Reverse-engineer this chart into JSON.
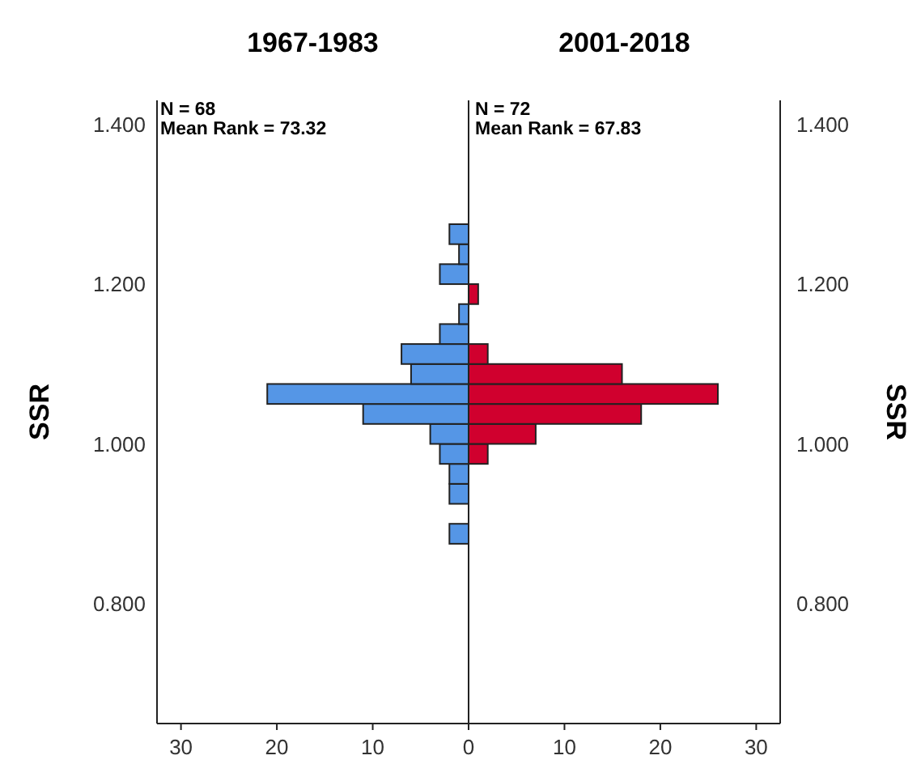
{
  "chart_data": [
    {
      "type": "histogram",
      "orientation": "horizontal",
      "title": "1967-1983",
      "ylabel": "SSR",
      "annotations": [
        "N = 68",
        "Mean Rank = 73.32"
      ],
      "bins": [
        0.875,
        0.9,
        0.925,
        0.95,
        0.975,
        1.0,
        1.025,
        1.05,
        1.075,
        1.1,
        1.125,
        1.15,
        1.175,
        1.2,
        1.225,
        1.25,
        1.275
      ],
      "series": [
        {
          "color": "#5596e6",
          "values": [
            2,
            0,
            2,
            2,
            3,
            4,
            11,
            21,
            6,
            7,
            3,
            1,
            0,
            3,
            1,
            2
          ]
        }
      ],
      "xlim": [
        32.5,
        0
      ],
      "xticks": [
        30,
        20,
        10,
        {
          "value": 0,
          "label": null
        }
      ],
      "ylim": [
        0.65,
        1.43
      ],
      "yticks": [
        {
          "value": 0.8,
          "label": "0.800"
        },
        {
          "value": 1.0,
          "label": "1.000"
        },
        {
          "value": 1.2,
          "label": "1.200"
        },
        {
          "value": 1.4,
          "label": "1.400"
        }
      ]
    },
    {
      "type": "histogram",
      "orientation": "horizontal",
      "title": "2001-2018",
      "ylabel": "SSR",
      "annotations": [
        "N = 72",
        "Mean Rank = 67.83"
      ],
      "bins": [
        0.875,
        0.9,
        0.925,
        0.95,
        0.975,
        1.0,
        1.025,
        1.05,
        1.075,
        1.1,
        1.125,
        1.15,
        1.175,
        1.2,
        1.225,
        1.25,
        1.275
      ],
      "series": [
        {
          "color": "#d0002e",
          "values": [
            0,
            0,
            0,
            0,
            2,
            7,
            18,
            26,
            16,
            2,
            0,
            0,
            1,
            0,
            0,
            0
          ]
        }
      ],
      "xlim": [
        0,
        32.5
      ],
      "xticks": [
        0,
        10,
        20,
        30
      ],
      "ylim": [
        0.65,
        1.43
      ],
      "yticks": [
        {
          "value": 0.8,
          "label": "0.800"
        },
        {
          "value": 1.0,
          "label": "1.000"
        },
        {
          "value": 1.2,
          "label": "1.200"
        },
        {
          "value": 1.4,
          "label": "1.400"
        }
      ]
    }
  ]
}
